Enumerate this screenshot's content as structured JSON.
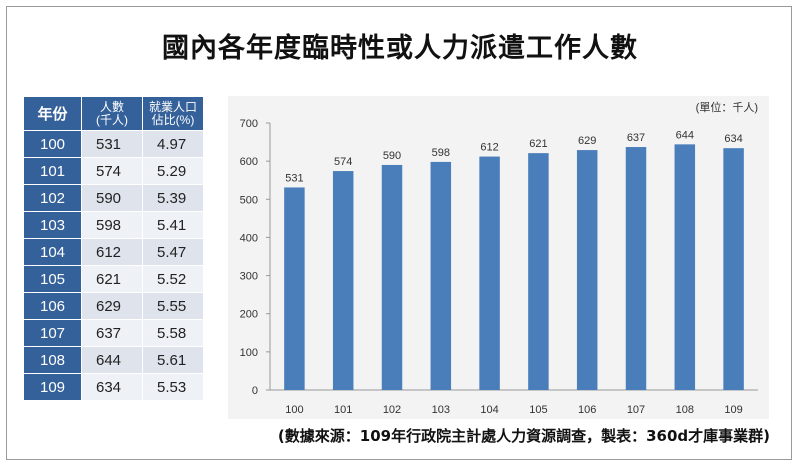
{
  "title": "國內各年度臨時性或人力派遣工作人數",
  "table": {
    "headers": [
      "年份",
      "人數\n(千人)",
      "就業人口\n佔比(%)"
    ],
    "rows": [
      {
        "year": "100",
        "people": "531",
        "ratio": "4.97"
      },
      {
        "year": "101",
        "people": "574",
        "ratio": "5.29"
      },
      {
        "year": "102",
        "people": "590",
        "ratio": "5.39"
      },
      {
        "year": "103",
        "people": "598",
        "ratio": "5.41"
      },
      {
        "year": "104",
        "people": "612",
        "ratio": "5.47"
      },
      {
        "year": "105",
        "people": "621",
        "ratio": "5.52"
      },
      {
        "year": "106",
        "people": "629",
        "ratio": "5.55"
      },
      {
        "year": "107",
        "people": "637",
        "ratio": "5.58"
      },
      {
        "year": "108",
        "people": "644",
        "ratio": "5.61"
      },
      {
        "year": "109",
        "people": "634",
        "ratio": "5.53"
      }
    ]
  },
  "chart_data": {
    "type": "bar",
    "unit_label": "(單位：千人)",
    "categories": [
      "100",
      "101",
      "102",
      "103",
      "104",
      "105",
      "106",
      "107",
      "108",
      "109"
    ],
    "values": [
      531,
      574,
      590,
      598,
      612,
      621,
      629,
      637,
      644,
      634
    ],
    "ylim": [
      0,
      700
    ],
    "yticks": [
      0,
      100,
      200,
      300,
      400,
      500,
      600,
      700
    ],
    "bar_color": "#4a7ebb",
    "grid": false
  },
  "source": "(數據來源：109年行政院主計處人力資源調查，製表：360d才庫事業群)"
}
